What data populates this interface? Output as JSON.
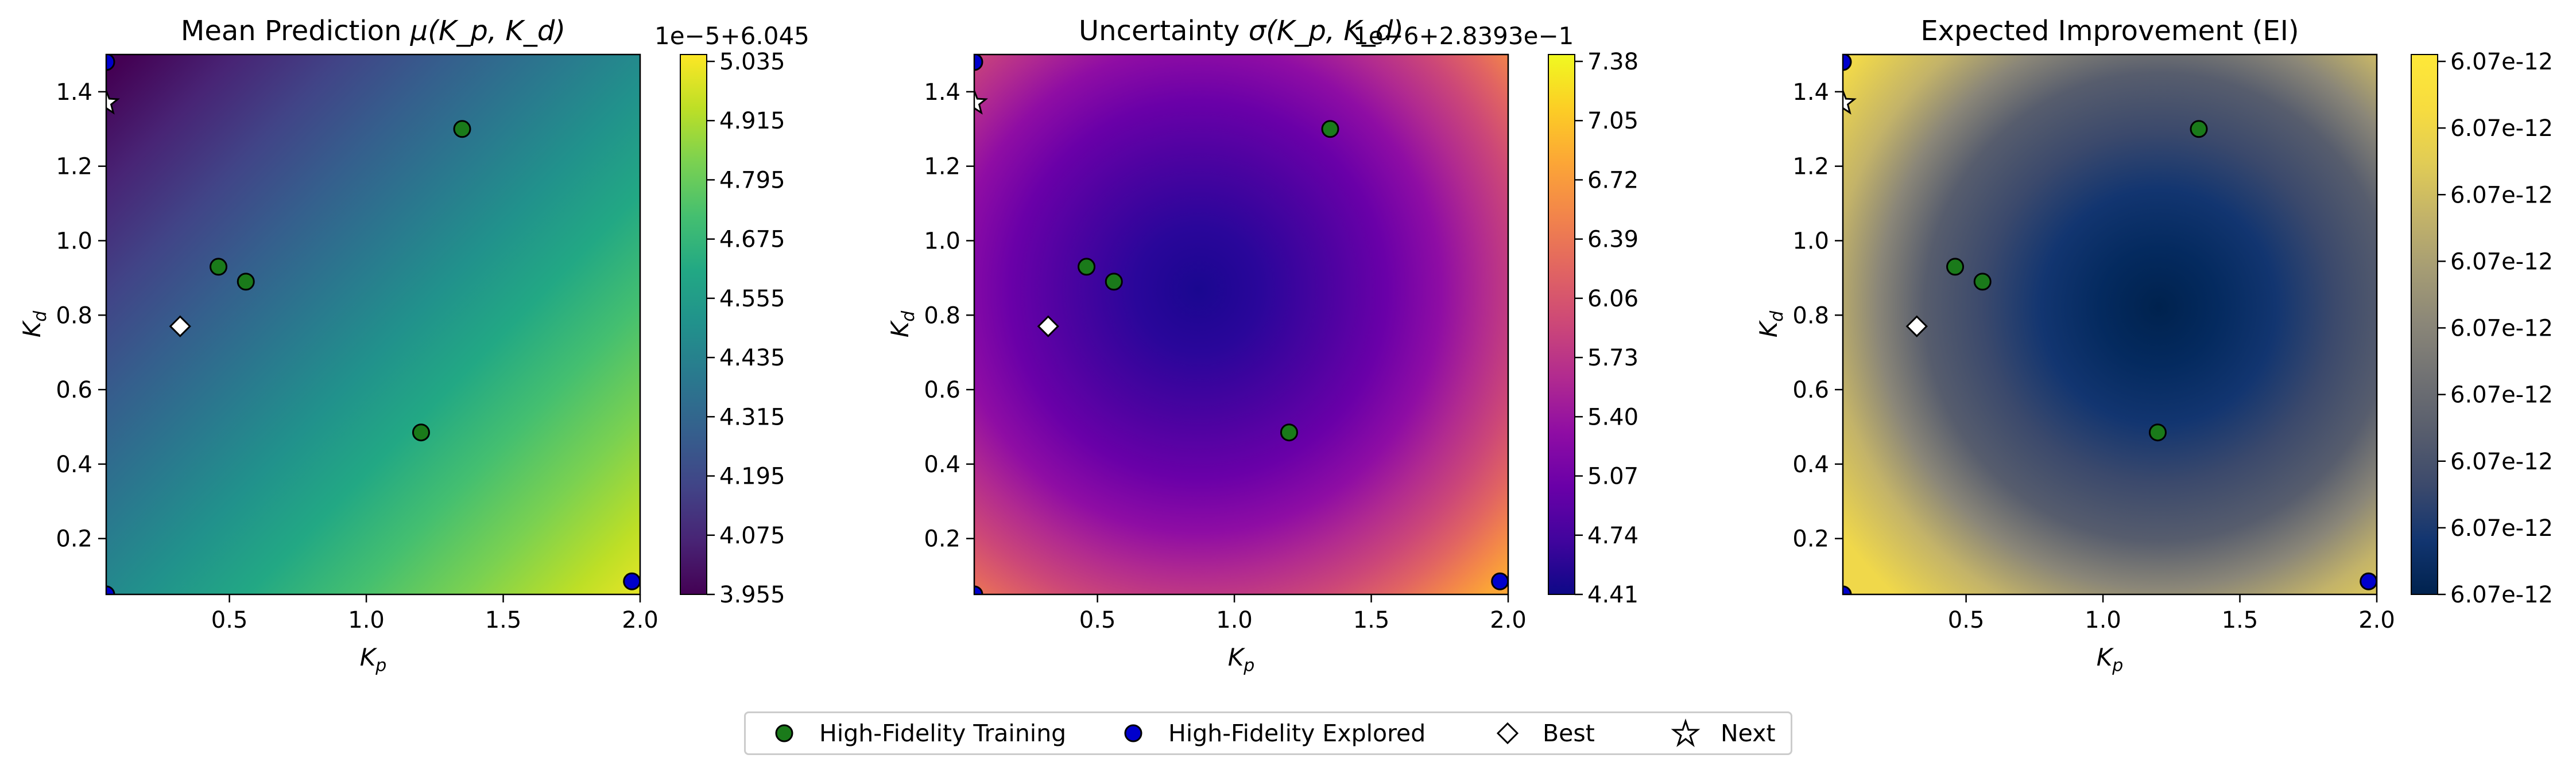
{
  "chart_data": [
    {
      "type": "heatmap",
      "title_text": "Mean Prediction ",
      "title_math": "μ(K_p, K_d)",
      "xlabel": "K_p",
      "ylabel": "K_d",
      "xlim": [
        0.05,
        2.0
      ],
      "ylim": [
        0.05,
        1.5
      ],
      "xticks": [
        "0.5",
        "1.0",
        "1.5",
        "2.0"
      ],
      "xtick_values": [
        0.5,
        1.0,
        1.5,
        2.0
      ],
      "yticks": [
        "0.2",
        "0.4",
        "0.6",
        "0.8",
        "1.0",
        "1.2",
        "1.4"
      ],
      "ytick_values": [
        0.2,
        0.4,
        0.6,
        0.8,
        1.0,
        1.2,
        1.4
      ],
      "colormap": "viridis",
      "field": "tilted-linear gradient increasing toward large K_p",
      "colorbar": {
        "offset_text": "1e−5+6.045",
        "ticks": [
          "3.955",
          "4.075",
          "4.195",
          "4.315",
          "4.435",
          "4.555",
          "4.675",
          "4.795",
          "4.915",
          "5.035"
        ],
        "range": [
          3.955,
          5.095
        ]
      }
    },
    {
      "type": "heatmap",
      "title_text": "Uncertainty ",
      "title_math": "σ(K_p, K_d)",
      "xlabel": "K_p",
      "ylabel": "K_d",
      "xlim": [
        0.05,
        2.0
      ],
      "ylim": [
        0.05,
        1.5
      ],
      "xticks": [
        "0.5",
        "1.0",
        "1.5",
        "2.0"
      ],
      "xtick_values": [
        0.5,
        1.0,
        1.5,
        2.0
      ],
      "yticks": [
        "0.2",
        "0.4",
        "0.6",
        "0.8",
        "1.0",
        "1.2",
        "1.4"
      ],
      "ytick_values": [
        0.2,
        0.4,
        0.6,
        0.8,
        1.0,
        1.2,
        1.4
      ],
      "colormap": "plasma",
      "field": "radial minimum near K_p≈0.85, K_d≈0.75, increasing toward corners",
      "colorbar": {
        "offset_text": "1e−6+2.8393e−1",
        "ticks": [
          "4.41",
          "4.74",
          "5.07",
          "5.40",
          "5.73",
          "6.06",
          "6.39",
          "6.72",
          "7.05",
          "7.38"
        ],
        "range": [
          4.41,
          7.43
        ]
      }
    },
    {
      "type": "heatmap",
      "title_text": "Expected Improvement (EI)",
      "title_math": "",
      "xlabel": "K_p",
      "ylabel": "K_d",
      "xlim": [
        0.05,
        2.0
      ],
      "ylim": [
        0.05,
        1.5
      ],
      "xticks": [
        "0.5",
        "1.0",
        "1.5",
        "2.0"
      ],
      "xtick_values": [
        0.5,
        1.0,
        1.5,
        2.0
      ],
      "yticks": [
        "0.2",
        "0.4",
        "0.6",
        "0.8",
        "1.0",
        "1.2",
        "1.4"
      ],
      "ytick_values": [
        0.2,
        0.4,
        0.6,
        0.8,
        1.0,
        1.2,
        1.4
      ],
      "colormap": "cividis",
      "field": "radial minimum near K_p≈1.1, K_d≈0.75, increasing toward corners",
      "colorbar": {
        "offset_text": "",
        "ticks": [
          "6.07e-12",
          "6.07e-12",
          "6.07e-12",
          "6.07e-12",
          "6.07e-12",
          "6.07e-12",
          "6.07e-12",
          "6.07e-12",
          "6.07e-12"
        ],
        "range": [
          0,
          1
        ]
      }
    }
  ],
  "points": {
    "high_fidelity_training": [
      [
        0.46,
        0.93
      ],
      [
        0.56,
        0.89
      ],
      [
        1.35,
        1.3
      ],
      [
        1.2,
        0.485
      ]
    ],
    "high_fidelity_explored": [
      [
        0.05,
        1.48
      ],
      [
        0.05,
        0.05
      ],
      [
        1.97,
        0.085
      ]
    ],
    "best": [
      [
        0.32,
        0.77
      ]
    ],
    "next": [
      [
        0.05,
        1.37
      ]
    ]
  },
  "colors": {
    "training": "#1a7a1a",
    "explored": "#0000cc",
    "best": "#ffffff",
    "next": "#ffffff",
    "edge": "#000000"
  },
  "legend": {
    "training": "High-Fidelity Training",
    "explored": "High-Fidelity Explored",
    "best": "Best",
    "next": "Next"
  }
}
